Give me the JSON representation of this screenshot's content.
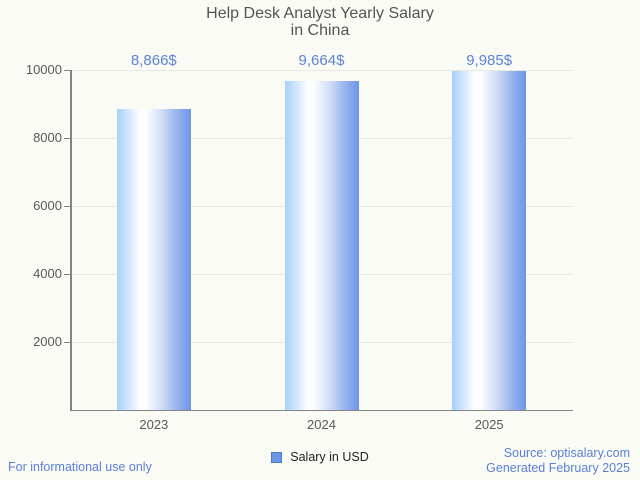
{
  "header": {
    "title": "Help Desk Analyst Yearly Salary\nin China"
  },
  "chart_data": {
    "type": "bar",
    "title": "Help Desk Analyst Yearly Salary in China",
    "categories": [
      "2023",
      "2024",
      "2025"
    ],
    "series": [
      {
        "name": "Salary in USD",
        "values": [
          8866,
          9664,
          9985
        ]
      }
    ],
    "value_labels": [
      "8,866$",
      "9,664$",
      "9,985$"
    ],
    "xlabel": "",
    "ylabel": "",
    "ylim": [
      0,
      10000
    ],
    "yticks": [
      2000,
      4000,
      6000,
      8000,
      10000
    ],
    "grid": true,
    "legend_position": "bottom"
  },
  "legend": {
    "label": "Salary in USD"
  },
  "footer": {
    "disclaimer": "For informational use only",
    "source": "Source: optisalary.com",
    "generated": "Generated February 2025"
  },
  "colors": {
    "accent_blue": "#5b7fd9",
    "value_label_blue": "#5b83dc",
    "bar_gradient_left": "#a6d1f7",
    "bar_gradient_mid": "#ffffff",
    "bar_gradient_right": "#6d94e8",
    "legend_marker_fill": "#6b96e8",
    "legend_marker_border": "#4a7ad0",
    "axis_gray": "#848484",
    "grid_gray": "#e9e9e4",
    "tick_text_gray": "#58595b",
    "title_gray": "#545454",
    "background": "#fbfbf6"
  }
}
